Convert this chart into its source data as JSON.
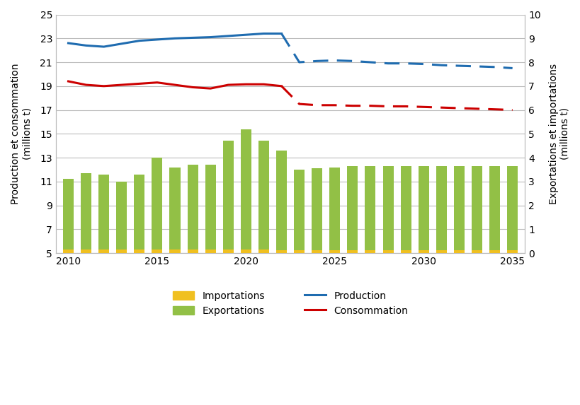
{
  "years_all": [
    2010,
    2011,
    2012,
    2013,
    2014,
    2015,
    2016,
    2017,
    2018,
    2019,
    2020,
    2021,
    2022,
    2023,
    2024,
    2025,
    2026,
    2027,
    2028,
    2029,
    2030,
    2031,
    2032,
    2033,
    2034,
    2035
  ],
  "exportations": [
    3.1,
    3.35,
    3.3,
    3.0,
    3.3,
    4.0,
    3.6,
    3.7,
    3.7,
    4.7,
    5.2,
    4.7,
    4.3,
    3.5,
    3.55,
    3.6,
    3.65,
    3.65,
    3.65,
    3.65,
    3.65,
    3.65,
    3.65,
    3.65,
    3.65,
    3.65
  ],
  "importations": [
    0.15,
    0.15,
    0.15,
    0.15,
    0.15,
    0.15,
    0.15,
    0.15,
    0.15,
    0.15,
    0.15,
    0.15,
    0.12,
    0.12,
    0.12,
    0.12,
    0.12,
    0.12,
    0.12,
    0.12,
    0.12,
    0.12,
    0.12,
    0.12,
    0.12,
    0.12
  ],
  "years_line_solid": [
    2010,
    2011,
    2012,
    2013,
    2014,
    2015,
    2016,
    2017,
    2018,
    2019,
    2020,
    2021,
    2022
  ],
  "years_line_dashed": [
    2022,
    2023,
    2024,
    2025,
    2026,
    2027,
    2028,
    2029,
    2030,
    2031,
    2032,
    2033,
    2034,
    2035
  ],
  "production_solid": [
    22.6,
    22.4,
    22.3,
    22.55,
    22.8,
    22.9,
    23.0,
    23.05,
    23.1,
    23.2,
    23.3,
    23.4,
    23.4
  ],
  "production_dashed": [
    23.4,
    21.0,
    21.1,
    21.15,
    21.1,
    21.0,
    20.9,
    20.9,
    20.85,
    20.75,
    20.7,
    20.65,
    20.6,
    20.5
  ],
  "consommation_solid": [
    19.4,
    19.1,
    19.0,
    19.1,
    19.2,
    19.3,
    19.1,
    18.9,
    18.8,
    19.1,
    19.15,
    19.15,
    19.0
  ],
  "consommation_dashed": [
    19.0,
    17.5,
    17.4,
    17.4,
    17.35,
    17.35,
    17.3,
    17.3,
    17.25,
    17.2,
    17.15,
    17.1,
    17.05,
    17.0
  ],
  "bar_color_exportations": "#92C046",
  "bar_color_importations": "#F0C020",
  "line_color_production": "#1F6CB0",
  "line_color_consommation": "#CC0000",
  "ylim_left": [
    5,
    25
  ],
  "ylim_right": [
    0,
    10
  ],
  "yticks_left": [
    5,
    7,
    9,
    11,
    13,
    15,
    17,
    19,
    21,
    23,
    25
  ],
  "yticks_right": [
    0,
    1,
    2,
    3,
    4,
    5,
    6,
    7,
    8,
    9,
    10
  ],
  "xlim": [
    2009.3,
    2035.7
  ],
  "xticks": [
    2010,
    2015,
    2020,
    2025,
    2030,
    2035
  ],
  "ylabel_left": "Production et consommation\n(millions t)",
  "ylabel_right": "Exportations et importations\n(millions t)",
  "bg_color": "#FFFFFF",
  "grid_color": "#BBBBBB",
  "bar_width": 0.6,
  "line_width": 2.2
}
